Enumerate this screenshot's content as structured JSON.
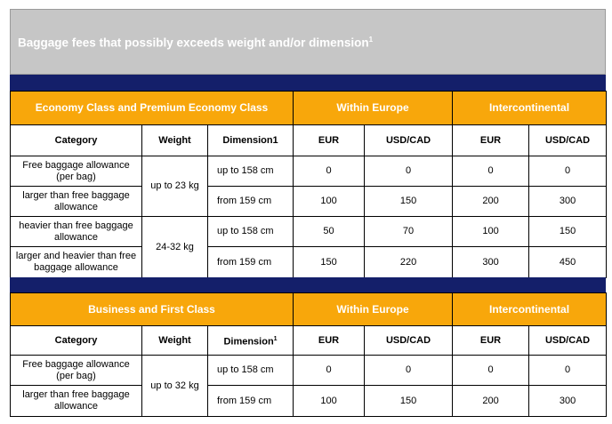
{
  "title": "Baggage fees that possibly exceeds weight and/or dimension",
  "title_footnote": "1",
  "colors": {
    "orange": "#f8a70b",
    "navy": "#141f6a",
    "title_bg": "#c6c6c6"
  },
  "economy": {
    "class_label": "Economy Class and Premium Economy Class",
    "within_europe": "Within Europe",
    "intercontinental": "Intercontinental",
    "headers": {
      "category": "Category",
      "weight": "Weight",
      "dimension": "Dimension1",
      "eur": "EUR",
      "usd_cad": "USD/CAD",
      "eur2": "EUR",
      "usd_cad2": "USD/CAD"
    },
    "weight_1": "up to 23 kg",
    "weight_2": "24-32 kg",
    "rows": [
      {
        "category": "Free baggage allowance (per bag)",
        "dimension": "up to  158 cm",
        "eur": "0",
        "usd": "0",
        "eur_i": "0",
        "usd_i": "0"
      },
      {
        "category": "larger than free baggage allowance",
        "dimension": "from  159 cm",
        "eur": "100",
        "usd": "150",
        "eur_i": "200",
        "usd_i": "300"
      },
      {
        "category": "heavier than free baggage allowance",
        "dimension": "up to  158 cm",
        "eur": "50",
        "usd": "70",
        "eur_i": "100",
        "usd_i": "150"
      },
      {
        "category": "larger and heavier than free baggage allowance",
        "dimension": "from  159 cm",
        "eur": "150",
        "usd": "220",
        "eur_i": "300",
        "usd_i": "450"
      }
    ]
  },
  "business": {
    "class_label": "Business and First Class",
    "within_europe": "Within Europe",
    "intercontinental": "Intercontinental",
    "headers": {
      "category": "Category",
      "weight": "Weight",
      "dimension": "Dimension",
      "dimension_footnote": "1",
      "eur": "EUR",
      "usd_cad": "USD/CAD",
      "eur2": "EUR",
      "usd_cad2": "USD/CAD"
    },
    "weight_1": "up to 32 kg",
    "rows": [
      {
        "category": "Free baggage allowance (per bag)",
        "dimension": "up to  158 cm",
        "eur": "0",
        "usd": "0",
        "eur_i": "0",
        "usd_i": "0"
      },
      {
        "category": "larger than free baggage allowance",
        "dimension": "from  159 cm",
        "eur": "100",
        "usd": "150",
        "eur_i": "200",
        "usd_i": "300"
      }
    ]
  }
}
